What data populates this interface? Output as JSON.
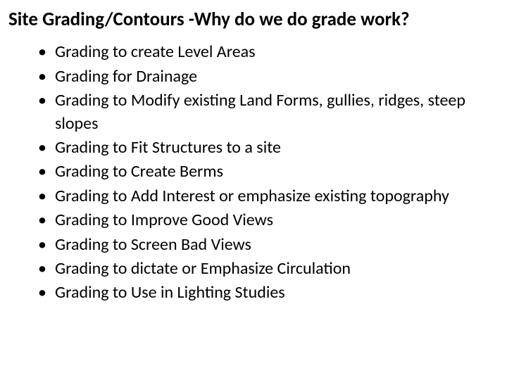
{
  "title": "Site Grading/Contours -Why do we do grade work?",
  "colors": {
    "background": "#ffffff",
    "text": "#000000"
  },
  "typography": {
    "title_fontsize": 27,
    "title_weight": "bold",
    "body_fontsize": 24,
    "font_family": "Calibri, Arial, sans-serif"
  },
  "bullets": [
    "Grading to create Level Areas",
    "Grading for Drainage",
    "Grading to Modify existing  Land Forms, gullies, ridges, steep slopes",
    "Grading to Fit Structures to a site",
    "Grading to Create Berms",
    "Grading to Add Interest or emphasize existing topography",
    "Grading to Improve Good Views",
    "Grading to  Screen Bad Views",
    "Grading to dictate or Emphasize Circulation",
    "Grading to Use in Lighting Studies"
  ]
}
